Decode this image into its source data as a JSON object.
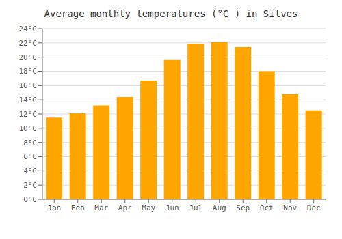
{
  "chart_data": {
    "type": "bar",
    "title": "Average monthly temperatures (°C ) in Silves",
    "categories": [
      "Jan",
      "Feb",
      "Mar",
      "Apr",
      "May",
      "Jun",
      "Jul",
      "Aug",
      "Sep",
      "Oct",
      "Nov",
      "Dec"
    ],
    "values": [
      11.5,
      12.1,
      13.2,
      14.4,
      16.7,
      19.6,
      21.9,
      22.1,
      21.4,
      18.0,
      14.8,
      12.5
    ],
    "color": "#FFA500",
    "ylim": [
      0,
      24
    ],
    "yticks": [
      {
        "value": 0,
        "label": "0°C"
      },
      {
        "value": 2,
        "label": "2°C"
      },
      {
        "value": 4,
        "label": "4°C"
      },
      {
        "value": 6,
        "label": "6°C"
      },
      {
        "value": 8,
        "label": "8°C"
      },
      {
        "value": 10,
        "label": "10°C"
      },
      {
        "value": 12,
        "label": "12°C"
      },
      {
        "value": 14,
        "label": "14°C"
      },
      {
        "value": 16,
        "label": "16°C"
      },
      {
        "value": 18,
        "label": "18°C"
      },
      {
        "value": 20,
        "label": "20°C"
      },
      {
        "value": 22,
        "label": "22°C"
      },
      {
        "value": 24,
        "label": "24°C"
      }
    ],
    "grid": true
  }
}
